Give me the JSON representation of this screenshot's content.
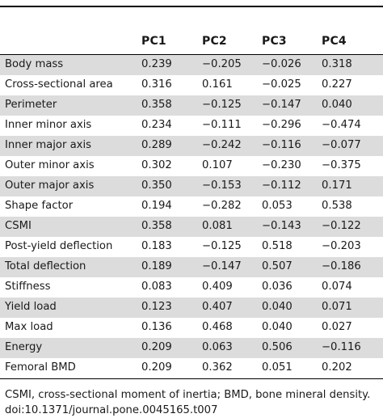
{
  "table": {
    "columns": [
      "",
      "PC1",
      "PC2",
      "PC3",
      "PC4"
    ],
    "rows": [
      {
        "label": "Body mass",
        "values": [
          "0.239",
          "−0.205",
          "−0.026",
          "0.318"
        ]
      },
      {
        "label": "Cross-sectional area",
        "values": [
          "0.316",
          "0.161",
          "−0.025",
          "0.227"
        ]
      },
      {
        "label": "Perimeter",
        "values": [
          "0.358",
          "−0.125",
          "−0.147",
          "0.040"
        ]
      },
      {
        "label": "Inner minor axis",
        "values": [
          "0.234",
          "−0.111",
          "−0.296",
          "−0.474"
        ]
      },
      {
        "label": "Inner major axis",
        "values": [
          "0.289",
          "−0.242",
          "−0.116",
          "−0.077"
        ]
      },
      {
        "label": "Outer minor axis",
        "values": [
          "0.302",
          "0.107",
          "−0.230",
          "−0.375"
        ]
      },
      {
        "label": "Outer major axis",
        "values": [
          "0.350",
          "−0.153",
          "−0.112",
          "0.171"
        ]
      },
      {
        "label": "Shape factor",
        "values": [
          "0.194",
          "−0.282",
          "0.053",
          "0.538"
        ]
      },
      {
        "label": "CSMI",
        "values": [
          "0.358",
          "0.081",
          "−0.143",
          "−0.122"
        ]
      },
      {
        "label": "Post-yield deflection",
        "values": [
          "0.183",
          "−0.125",
          "0.518",
          "−0.203"
        ]
      },
      {
        "label": "Total deflection",
        "values": [
          "0.189",
          "−0.147",
          "0.507",
          "−0.186"
        ]
      },
      {
        "label": "Stiffness",
        "values": [
          "0.083",
          "0.409",
          "0.036",
          "0.074"
        ]
      },
      {
        "label": "Yield load",
        "values": [
          "0.123",
          "0.407",
          "0.040",
          "0.071"
        ]
      },
      {
        "label": "Max load",
        "values": [
          "0.136",
          "0.468",
          "0.040",
          "0.027"
        ]
      },
      {
        "label": "Energy",
        "values": [
          "0.209",
          "0.063",
          "0.506",
          "−0.116"
        ]
      },
      {
        "label": "Femoral BMD",
        "values": [
          "0.209",
          "0.362",
          "0.051",
          "0.202"
        ]
      }
    ],
    "shaded_color": "#dcdcdc"
  },
  "footnote": {
    "line1": "CSMI, cross-sectional moment of inertia; BMD, bone mineral density.",
    "line2": "doi:10.1371/journal.pone.0045165.t007"
  }
}
